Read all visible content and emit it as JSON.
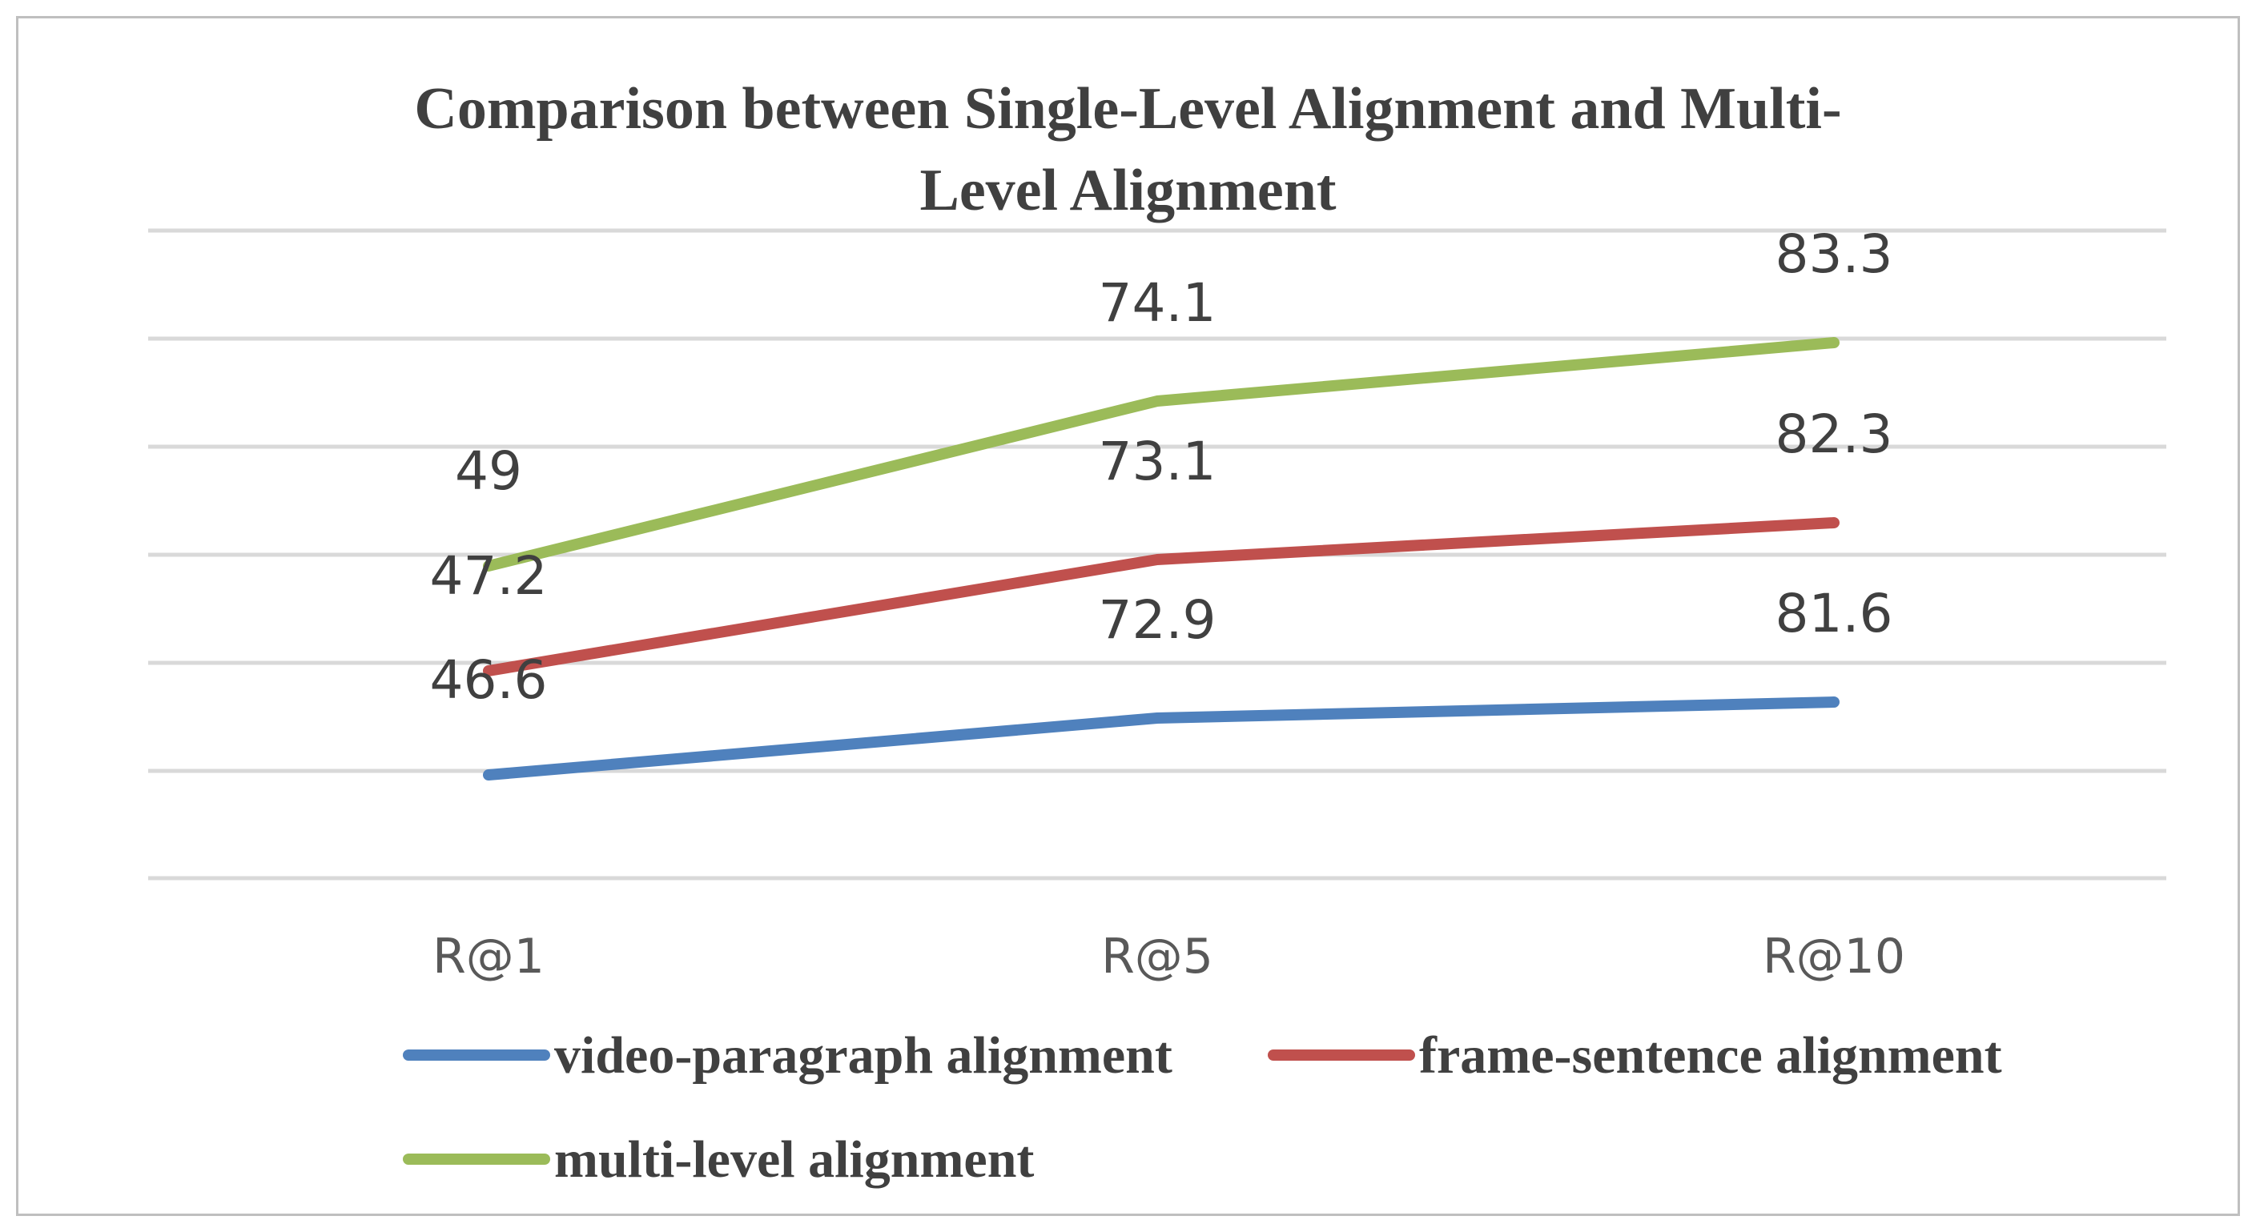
{
  "chart_data": {
    "type": "line",
    "title_lines": [
      "Comparison between Single-Level Alignment and Multi-",
      "Level Alignment"
    ],
    "categories": [
      "R@1",
      "R@5",
      "R@10"
    ],
    "series": [
      {
        "name": "video-paragraph alignment",
        "values": [
          46.6,
          72.9,
          81.6
        ],
        "color": "#4f81bd"
      },
      {
        "name": "frame-sentence alignment",
        "values": [
          47.2,
          73.1,
          82.3
        ],
        "color": "#c0504d"
      },
      {
        "name": "multi-level alignment",
        "values": [
          49,
          74.1,
          83.3
        ],
        "color": "#9bbb59"
      }
    ],
    "data_labels": [
      [
        "46.6",
        "72.9",
        "81.6"
      ],
      [
        "47.2",
        "73.1",
        "82.3"
      ],
      [
        "49",
        "74.1",
        "83.3"
      ]
    ],
    "xlabel": "",
    "ylabel": "",
    "grid": true,
    "legend_position": "bottom",
    "gridline_color": "#d9d9d9"
  }
}
